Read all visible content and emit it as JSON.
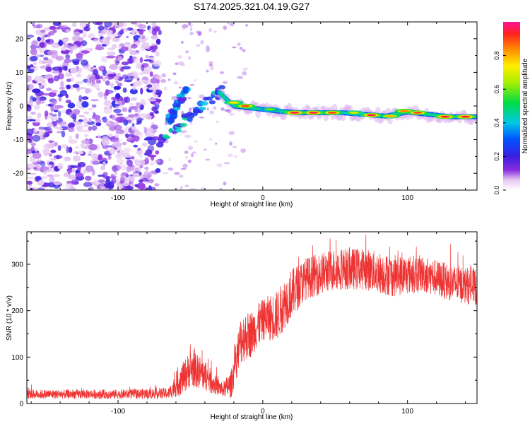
{
  "title": "S174.2025.321.04.19.G27",
  "chart_data": [
    {
      "type": "heatmap",
      "xlabel": "Height of straight line (km)",
      "ylabel": "Frequency (Hz)",
      "xlim": [
        -163,
        148
      ],
      "ylim": [
        -25,
        25
      ],
      "xticks": [
        {
          "v": -100,
          "label": "-100"
        },
        {
          "v": 0,
          "label": "0"
        },
        {
          "v": 100,
          "label": "100"
        }
      ],
      "yticks": [
        {
          "v": 20,
          "label": "20"
        },
        {
          "v": 10,
          "label": "10"
        },
        {
          "v": 0,
          "label": "0"
        },
        {
          "v": -10,
          "label": "-10"
        },
        {
          "v": -20,
          "label": "-20"
        }
      ],
      "colorbar": {
        "label": "Normalized spectral amplitude",
        "range": [
          0,
          1
        ],
        "ticks": [
          {
            "v": 0.0,
            "label": "0.0"
          },
          {
            "v": 0.2,
            "label": "0.2"
          },
          {
            "v": 0.4,
            "label": "0.4"
          },
          {
            "v": 0.6,
            "label": "0.6"
          },
          {
            "v": 0.8,
            "label": "0.8"
          }
        ]
      },
      "noise_region_x": [
        -163,
        -71
      ],
      "ridge": [
        {
          "x": -30,
          "f": 4
        },
        {
          "x": -20,
          "f": 0
        },
        {
          "x": -10,
          "f": -0.5
        },
        {
          "x": 0,
          "f": -1
        },
        {
          "x": 10,
          "f": -1.5
        },
        {
          "x": 25,
          "f": -2
        },
        {
          "x": 40,
          "f": -2
        },
        {
          "x": 55,
          "f": -2
        },
        {
          "x": 70,
          "f": -2.5
        },
        {
          "x": 85,
          "f": -3
        },
        {
          "x": 100,
          "f": -1.8
        },
        {
          "x": 115,
          "f": -2.5
        },
        {
          "x": 130,
          "f": -3.2
        },
        {
          "x": 148,
          "f": -3.2
        }
      ],
      "ridge_peaks": [
        {
          "x": 22,
          "f": -2,
          "amp": 0.95
        },
        {
          "x": 35,
          "f": -2,
          "amp": 0.95
        },
        {
          "x": 48,
          "f": -2,
          "amp": 0.9
        },
        {
          "x": 63,
          "f": -2,
          "amp": 0.7
        },
        {
          "x": 75,
          "f": -2.7,
          "amp": 0.95
        },
        {
          "x": 88,
          "f": -3,
          "amp": 0.8
        },
        {
          "x": 98,
          "f": -1.5,
          "amp": 0.85
        },
        {
          "x": 107,
          "f": -2,
          "amp": 0.9
        },
        {
          "x": 126,
          "f": -3.2,
          "amp": 0.95
        },
        {
          "x": 140,
          "f": -3.2,
          "amp": 0.95
        },
        {
          "x": -12,
          "f": 0,
          "amp": 0.9
        },
        {
          "x": -20,
          "f": 1,
          "amp": 0.75
        },
        {
          "x": 5,
          "f": -1,
          "amp": 0.6
        }
      ],
      "branches": [
        {
          "from": {
            "x": -72,
            "f": -11
          },
          "to": {
            "x": -28,
            "f": 5
          }
        },
        {
          "from": {
            "x": -65,
            "f": -5
          },
          "to": {
            "x": -52,
            "f": 6
          }
        }
      ]
    },
    {
      "type": "line",
      "xlabel": "Height of straight line (km)",
      "ylabel": "SNR (10 * v/v)",
      "xlim": [
        -163,
        148
      ],
      "ylim": [
        0,
        370
      ],
      "xticks": [
        {
          "v": -100,
          "label": "-100"
        },
        {
          "v": 0,
          "label": "0"
        },
        {
          "v": 100,
          "label": "100"
        }
      ],
      "yticks": [
        {
          "v": 0,
          "label": "0"
        },
        {
          "v": 100,
          "label": "100"
        },
        {
          "v": 200,
          "label": "200"
        },
        {
          "v": 300,
          "label": "300"
        }
      ],
      "series": [
        {
          "name": "SNR",
          "color": "#ee3333",
          "envelope_x": [
            -163,
            -100,
            -65,
            -58,
            -50,
            -42,
            -35,
            -28,
            -22,
            -15,
            -8,
            0,
            10,
            18,
            30,
            50,
            70,
            90,
            110,
            130,
            148
          ],
          "envelope_mean": [
            20,
            20,
            22,
            45,
            75,
            65,
            45,
            30,
            40,
            140,
            150,
            180,
            190,
            230,
            270,
            290,
            290,
            275,
            280,
            260,
            250
          ],
          "envelope_spread": [
            10,
            10,
            12,
            30,
            40,
            35,
            25,
            15,
            30,
            55,
            50,
            45,
            55,
            55,
            45,
            45,
            45,
            45,
            40,
            40,
            40
          ]
        }
      ]
    }
  ]
}
